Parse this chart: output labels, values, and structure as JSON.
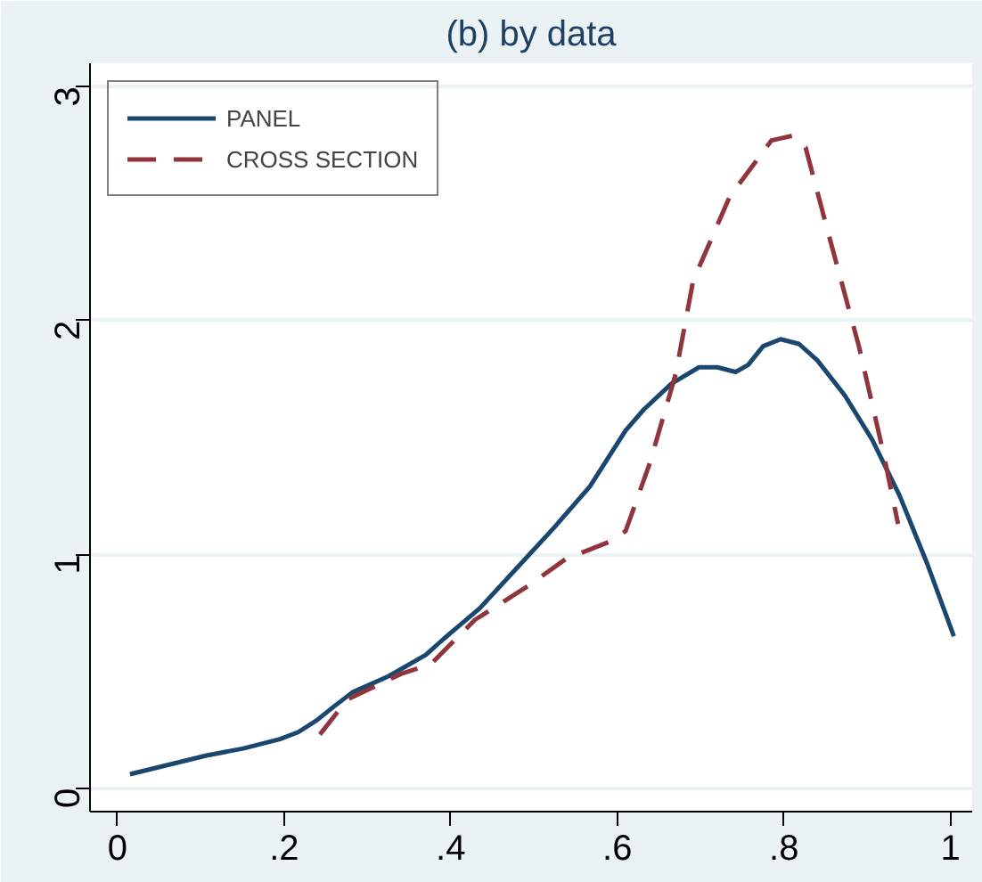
{
  "chart_data": {
    "type": "line",
    "title": "(b) by data",
    "xlim": [
      -0.033,
      1.026
    ],
    "ylim": [
      -0.1,
      3.1
    ],
    "xticks": [
      {
        "value": 0,
        "label": "0"
      },
      {
        "value": 0.2,
        "label": ".2"
      },
      {
        "value": 0.4,
        "label": ".4"
      },
      {
        "value": 0.6,
        "label": ".6"
      },
      {
        "value": 0.8,
        "label": ".8"
      },
      {
        "value": 1,
        "label": "1"
      }
    ],
    "yticks": [
      0,
      1,
      2,
      3
    ],
    "grid": "y",
    "legend": "top left",
    "series": [
      {
        "name": "PANEL",
        "color": "#1a476f",
        "line_style": "solid",
        "x": [
          0.015,
          0.107,
          0.151,
          0.195,
          0.217,
          0.239,
          0.26,
          0.282,
          0.326,
          0.37,
          0.392,
          0.435,
          0.479,
          0.523,
          0.567,
          0.61,
          0.632,
          0.665,
          0.698,
          0.72,
          0.742,
          0.757,
          0.775,
          0.796,
          0.818,
          0.84,
          0.873,
          0.906,
          0.939,
          0.972,
          1.004
        ],
        "values": [
          0.06,
          0.14,
          0.17,
          0.21,
          0.24,
          0.29,
          0.35,
          0.41,
          0.48,
          0.57,
          0.64,
          0.77,
          0.94,
          1.11,
          1.29,
          1.53,
          1.62,
          1.73,
          1.8,
          1.8,
          1.78,
          1.81,
          1.89,
          1.92,
          1.9,
          1.83,
          1.68,
          1.49,
          1.25,
          0.96,
          0.65
        ]
      },
      {
        "name": "CROSS SECTION",
        "color": "#90353b",
        "line_style": "dashed",
        "x": [
          0.243,
          0.276,
          0.341,
          0.376,
          0.429,
          0.495,
          0.538,
          0.595,
          0.61,
          0.639,
          0.67,
          0.691,
          0.735,
          0.785,
          0.81,
          0.826,
          0.852,
          0.89,
          0.919,
          0.937
        ],
        "values": [
          0.23,
          0.38,
          0.49,
          0.53,
          0.72,
          0.87,
          0.98,
          1.06,
          1.1,
          1.39,
          1.77,
          2.17,
          2.53,
          2.77,
          2.79,
          2.74,
          2.39,
          1.89,
          1.44,
          1.13
        ]
      }
    ]
  }
}
